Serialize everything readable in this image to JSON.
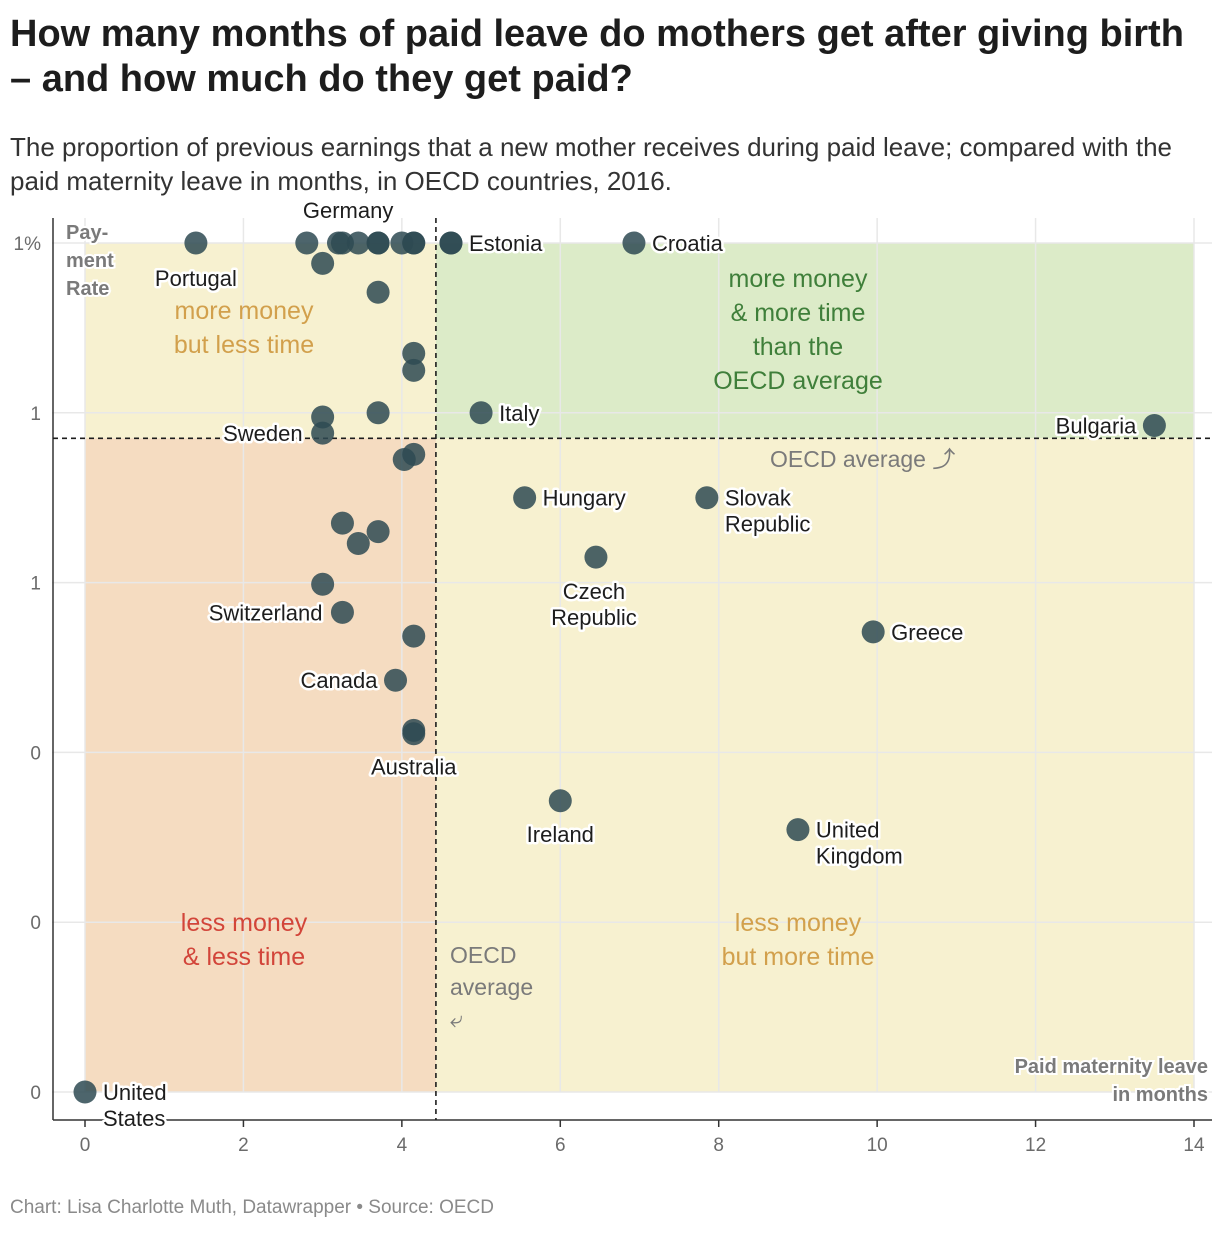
{
  "title": "How many months of paid leave do mothers get after giving birth – and how much do they get paid?",
  "subtitle": "The proportion of previous earnings that a new mother receives during paid leave; compared with the paid maternity leave in months, in OECD countries, 2016.",
  "credit": "Chart: Lisa Charlotte Muth, Datawrapper • Source: OECD",
  "colors": {
    "dot": "#2e4a52",
    "quad_top_right": "#dcebc8",
    "quad_bottom_left": "#f5dcc1",
    "quad_neutral": "#f7f1d0",
    "text_green": "#3f7f3a",
    "text_orange": "#d2a04c",
    "text_red": "#d2453a"
  },
  "chart_data": {
    "type": "scatter",
    "xlabel": "Paid maternity leave in months",
    "ylabel": "Pay- ment Rate",
    "xlim": [
      0,
      14
    ],
    "ylim": [
      0,
      1
    ],
    "x_ticks": [
      0,
      2,
      4,
      6,
      8,
      10,
      12,
      14
    ],
    "x_tick_labels": [
      "0",
      "2",
      "4",
      "6",
      "8",
      "10",
      "12",
      "14"
    ],
    "y_ticks": [
      1,
      0.8,
      0.6,
      0.4,
      0.2,
      0
    ],
    "y_tick_labels": [
      "1%",
      "1",
      "1",
      "0",
      "0",
      "0"
    ],
    "averages": {
      "x": 4.43,
      "y": 0.77,
      "x_label": "OECD average ⤶",
      "y_label": "OECD average ⤴"
    },
    "quadrants": {
      "top_left": "more money but less time",
      "top_right": "more money & more time than the OECD average",
      "bottom_left": "less money & less time",
      "bottom_right": "less money but more time"
    },
    "points": [
      {
        "label": "Portugal",
        "x": 1.4,
        "y": 1.0
      },
      {
        "label": "",
        "x": 2.8,
        "y": 1.0
      },
      {
        "label": "",
        "x": 3.2,
        "y": 1.0
      },
      {
        "label": "",
        "x": 3.25,
        "y": 1.0
      },
      {
        "label": "",
        "x": 3.45,
        "y": 1.0
      },
      {
        "label": "Germany",
        "x": 3.7,
        "y": 1.0
      },
      {
        "label": "",
        "x": 3.7,
        "y": 1.0
      },
      {
        "label": "",
        "x": 4.0,
        "y": 1.0
      },
      {
        "label": "",
        "x": 4.15,
        "y": 1.0
      },
      {
        "label": "",
        "x": 4.15,
        "y": 1.0
      },
      {
        "label": "Estonia",
        "x": 4.62,
        "y": 1.0
      },
      {
        "label": "",
        "x": 4.62,
        "y": 1.0
      },
      {
        "label": "Croatia",
        "x": 6.93,
        "y": 1.0
      },
      {
        "label": "",
        "x": 3.0,
        "y": 0.976
      },
      {
        "label": "",
        "x": 3.7,
        "y": 0.942
      },
      {
        "label": "",
        "x": 4.15,
        "y": 0.87
      },
      {
        "label": "",
        "x": 4.15,
        "y": 0.85
      },
      {
        "label": "Italy",
        "x": 5.0,
        "y": 0.8
      },
      {
        "label": "",
        "x": 3.7,
        "y": 0.8
      },
      {
        "label": "",
        "x": 3.0,
        "y": 0.795
      },
      {
        "label": "Sweden",
        "x": 3.0,
        "y": 0.776
      },
      {
        "label": "Bulgaria",
        "x": 13.5,
        "y": 0.785
      },
      {
        "label": "",
        "x": 4.15,
        "y": 0.751
      },
      {
        "label": "",
        "x": 4.03,
        "y": 0.745
      },
      {
        "label": "Hungary",
        "x": 5.55,
        "y": 0.7
      },
      {
        "label": "Slovak Republic",
        "x": 7.85,
        "y": 0.7
      },
      {
        "label": "",
        "x": 3.25,
        "y": 0.67
      },
      {
        "label": "",
        "x": 3.7,
        "y": 0.66
      },
      {
        "label": "",
        "x": 3.45,
        "y": 0.646
      },
      {
        "label": "Czech Republic",
        "x": 6.45,
        "y": 0.63
      },
      {
        "label": "",
        "x": 3.0,
        "y": 0.598
      },
      {
        "label": "Switzerland",
        "x": 3.25,
        "y": 0.565
      },
      {
        "label": "Greece",
        "x": 9.95,
        "y": 0.542
      },
      {
        "label": "",
        "x": 4.15,
        "y": 0.537
      },
      {
        "label": "Canada",
        "x": 3.92,
        "y": 0.485
      },
      {
        "label": "Australia",
        "x": 4.15,
        "y": 0.426
      },
      {
        "label": "",
        "x": 4.15,
        "y": 0.422
      },
      {
        "label": "Ireland",
        "x": 6.0,
        "y": 0.343
      },
      {
        "label": "United Kingdom",
        "x": 9.0,
        "y": 0.309
      },
      {
        "label": "United States",
        "x": 0.0,
        "y": 0.0
      }
    ]
  }
}
